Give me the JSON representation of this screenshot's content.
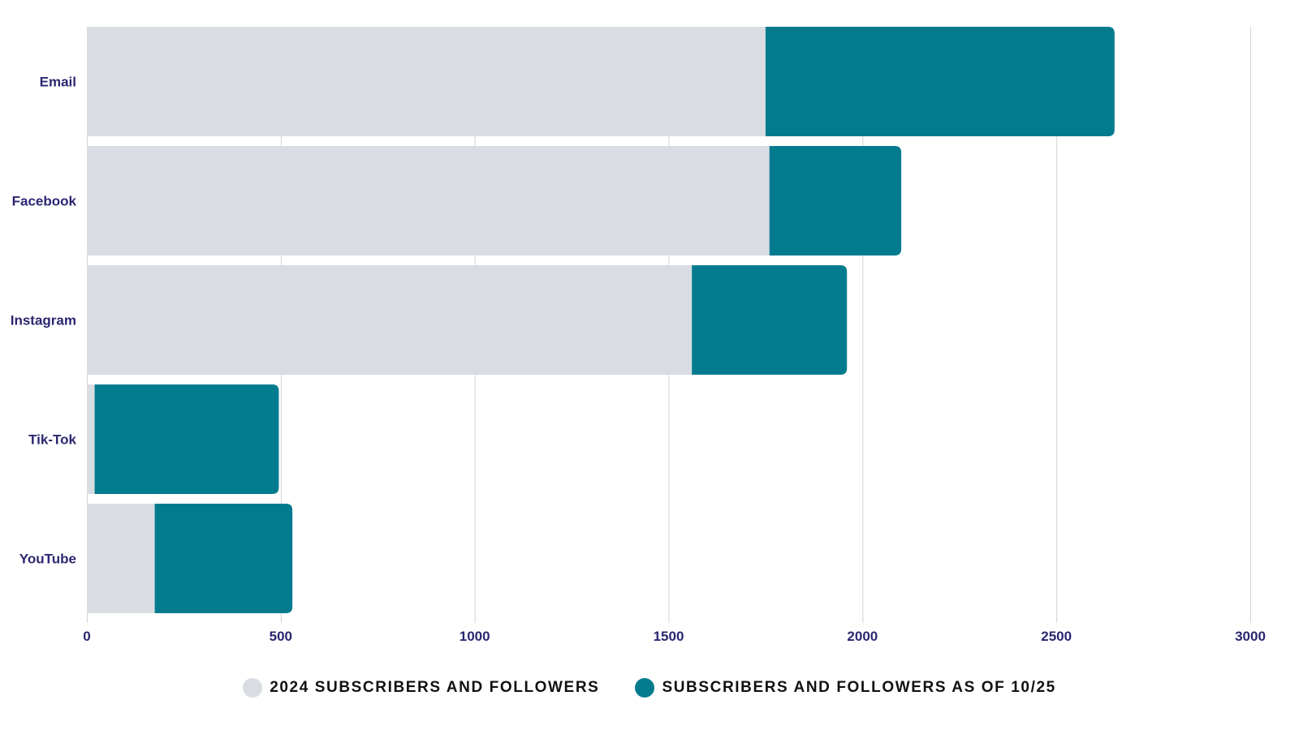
{
  "chart_data": {
    "type": "bar",
    "orientation": "horizontal",
    "stacked": true,
    "title": "",
    "xlabel": "",
    "ylabel": "",
    "categories": [
      "Email",
      "Facebook",
      "Instagram",
      "Tik-Tok",
      "YouTube"
    ],
    "series": [
      {
        "name": "2024 Subscribers and Followers",
        "color": "#d9dde3",
        "values": [
          1750,
          1760,
          1560,
          20,
          175
        ]
      },
      {
        "name": "Subscribers and Followers as of 10/25",
        "color": "#037b8f",
        "values": [
          900,
          340,
          400,
          475,
          355
        ]
      }
    ],
    "xlim": [
      0,
      3000
    ],
    "xticks": [
      0,
      500,
      1000,
      1500,
      2000,
      2500,
      3000
    ],
    "grid": "vertical",
    "legend_position": "bottom-center"
  }
}
